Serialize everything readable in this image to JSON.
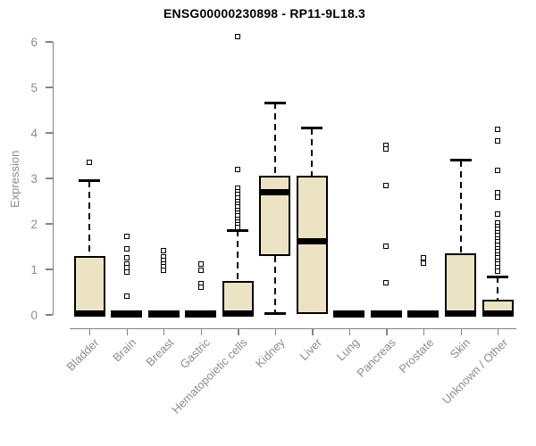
{
  "chart_data": {
    "type": "boxplot",
    "title": "ENSG00000230898 - RP11-9L18.3",
    "xlabel": "",
    "ylabel": "Expression",
    "ylim": [
      0,
      6
    ],
    "yticks": [
      0,
      1,
      2,
      3,
      4,
      5,
      6
    ],
    "grid": false,
    "legend": "none",
    "box_fill_color": "#ECE3C4",
    "box_border_color": "#000000",
    "axis_color": "#848484",
    "label_color": "#8C8C8C",
    "categories": [
      "Bladder",
      "Brain",
      "Breast",
      "Gastric",
      "Hematopoietic cells",
      "Kidney",
      "Liver",
      "Lung",
      "Pancreas",
      "Prostate",
      "Skin",
      "Unknown / Other"
    ],
    "boxes": [
      {
        "category": "Bladder",
        "q1": 0,
        "median": 0.02,
        "q3": 1.3,
        "whisker_low": 0,
        "whisker_high": 2.95,
        "outliers": [
          3.35
        ]
      },
      {
        "category": "Brain",
        "q1": 0,
        "median": 0.02,
        "q3": 0.05,
        "whisker_low": 0,
        "whisker_high": 0.05,
        "outliers": [
          1.72,
          1.45,
          1.25,
          1.12,
          1.03,
          0.95,
          0.42
        ]
      },
      {
        "category": "Breast",
        "q1": 0,
        "median": 0.02,
        "q3": 0.05,
        "whisker_low": 0,
        "whisker_high": 0.05,
        "outliers": [
          1.42,
          1.27,
          1.19,
          1.12,
          1.05,
          0.98
        ]
      },
      {
        "category": "Gastric",
        "q1": 0,
        "median": 0.02,
        "q3": 0.05,
        "whisker_low": 0,
        "whisker_high": 0.05,
        "outliers": [
          1.12,
          0.98,
          0.68,
          0.6
        ]
      },
      {
        "category": "Hematopoietic cells",
        "q1": 0,
        "median": 0.02,
        "q3": 0.75,
        "whisker_low": 0,
        "whisker_high": 1.86,
        "outliers": [
          6.12,
          3.2,
          2.78,
          2.71,
          2.64,
          2.57,
          2.5,
          2.44,
          2.37,
          2.3,
          2.24,
          2.17,
          2.1,
          2.04,
          1.98,
          1.92
        ]
      },
      {
        "category": "Kidney",
        "q1": 1.3,
        "median": 2.7,
        "q3": 3.06,
        "whisker_low": 0.02,
        "whisker_high": 4.66,
        "outliers": []
      },
      {
        "category": "Liver",
        "q1": 0.01,
        "median": 1.62,
        "q3": 3.05,
        "whisker_low": 0.01,
        "whisker_high": 4.1,
        "outliers": []
      },
      {
        "category": "Lung",
        "q1": 0,
        "median": 0.02,
        "q3": 0.05,
        "whisker_low": 0,
        "whisker_high": 0.05,
        "outliers": []
      },
      {
        "category": "Pancreas",
        "q1": 0,
        "median": 0.02,
        "q3": 0.05,
        "whisker_low": 0,
        "whisker_high": 0.05,
        "outliers": [
          3.72,
          3.65,
          2.84,
          1.51,
          0.71
        ]
      },
      {
        "category": "Prostate",
        "q1": 0,
        "median": 0.02,
        "q3": 0.05,
        "whisker_low": 0,
        "whisker_high": 0.05,
        "outliers": [
          1.26,
          1.14
        ]
      },
      {
        "category": "Skin",
        "q1": 0,
        "median": 0.02,
        "q3": 1.35,
        "whisker_low": 0,
        "whisker_high": 3.4,
        "outliers": []
      },
      {
        "category": "Unknown / Other",
        "q1": 0,
        "median": 0.02,
        "q3": 0.33,
        "whisker_low": 0,
        "whisker_high": 0.84,
        "outliers": [
          4.08,
          3.82,
          3.18,
          2.68,
          2.58,
          2.22,
          2.02,
          1.95,
          1.88,
          1.81,
          1.74,
          1.67,
          1.6,
          1.53,
          1.46,
          1.39,
          1.32,
          1.25,
          1.18,
          1.11,
          1.04,
          0.97
        ]
      }
    ]
  }
}
